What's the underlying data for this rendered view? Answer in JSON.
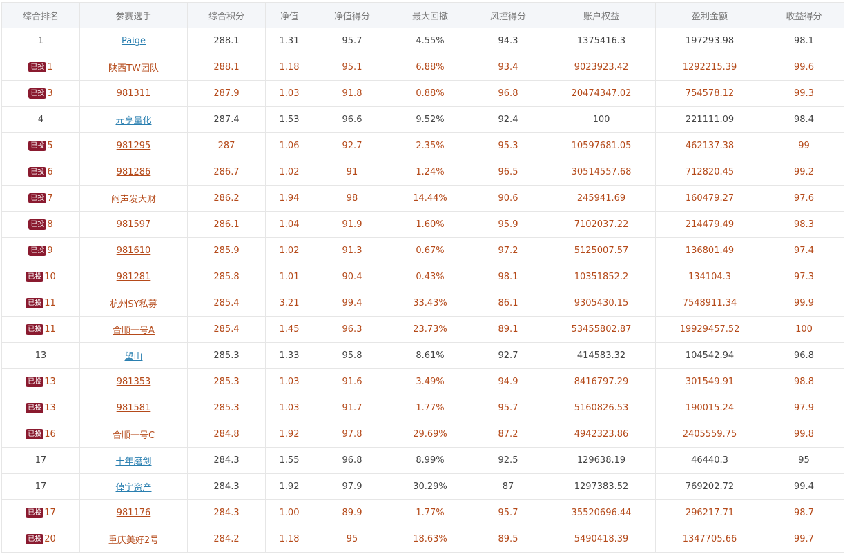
{
  "headers": [
    "综合排名",
    "参赛选手",
    "综合积分",
    "净值",
    "净值得分",
    "最大回撤",
    "风控得分",
    "账户权益",
    "盈利金额",
    "收益得分"
  ],
  "badge_label": "已投",
  "colors": {
    "invested_text": "#b54a1a",
    "link_blue": "#2a7fb0",
    "badge_bg": "#8a1a2f",
    "header_bg": "#f4f6f9"
  },
  "rows": [
    {
      "rank": "1",
      "invested": false,
      "name": "Paige",
      "score": "288.1",
      "nav": "1.31",
      "nav_score": "95.7",
      "max_dd": "4.55%",
      "risk_score": "94.3",
      "equity": "1375416.3",
      "profit": "197293.98",
      "return_score": "98.1"
    },
    {
      "rank": "1",
      "invested": true,
      "name": "陕西TW团队",
      "score": "288.1",
      "nav": "1.18",
      "nav_score": "95.1",
      "max_dd": "6.88%",
      "risk_score": "93.4",
      "equity": "9023923.42",
      "profit": "1292215.39",
      "return_score": "99.6"
    },
    {
      "rank": "3",
      "invested": true,
      "name": "981311",
      "score": "287.9",
      "nav": "1.03",
      "nav_score": "91.8",
      "max_dd": "0.88%",
      "risk_score": "96.8",
      "equity": "20474347.02",
      "profit": "754578.12",
      "return_score": "99.3"
    },
    {
      "rank": "4",
      "invested": false,
      "name": "元亨量化",
      "score": "287.4",
      "nav": "1.53",
      "nav_score": "96.6",
      "max_dd": "9.52%",
      "risk_score": "92.4",
      "equity": "100",
      "profit": "221111.09",
      "return_score": "98.4"
    },
    {
      "rank": "5",
      "invested": true,
      "name": "981295",
      "score": "287",
      "nav": "1.06",
      "nav_score": "92.7",
      "max_dd": "2.35%",
      "risk_score": "95.3",
      "equity": "10597681.05",
      "profit": "462137.38",
      "return_score": "99"
    },
    {
      "rank": "6",
      "invested": true,
      "name": "981286",
      "score": "286.7",
      "nav": "1.02",
      "nav_score": "91",
      "max_dd": "1.24%",
      "risk_score": "96.5",
      "equity": "30514557.68",
      "profit": "712820.45",
      "return_score": "99.2"
    },
    {
      "rank": "7",
      "invested": true,
      "name": "闷声发大财",
      "score": "286.2",
      "nav": "1.94",
      "nav_score": "98",
      "max_dd": "14.44%",
      "risk_score": "90.6",
      "equity": "245941.69",
      "profit": "160479.27",
      "return_score": "97.6"
    },
    {
      "rank": "8",
      "invested": true,
      "name": "981597",
      "score": "286.1",
      "nav": "1.04",
      "nav_score": "91.9",
      "max_dd": "1.60%",
      "risk_score": "95.9",
      "equity": "7102037.22",
      "profit": "214479.49",
      "return_score": "98.3"
    },
    {
      "rank": "9",
      "invested": true,
      "name": "981610",
      "score": "285.9",
      "nav": "1.02",
      "nav_score": "91.3",
      "max_dd": "0.67%",
      "risk_score": "97.2",
      "equity": "5125007.57",
      "profit": "136801.49",
      "return_score": "97.4"
    },
    {
      "rank": "10",
      "invested": true,
      "name": "981281",
      "score": "285.8",
      "nav": "1.01",
      "nav_score": "90.4",
      "max_dd": "0.43%",
      "risk_score": "98.1",
      "equity": "10351852.2",
      "profit": "134104.3",
      "return_score": "97.3"
    },
    {
      "rank": "11",
      "invested": true,
      "name": "杭州SY私募",
      "score": "285.4",
      "nav": "3.21",
      "nav_score": "99.4",
      "max_dd": "33.43%",
      "risk_score": "86.1",
      "equity": "9305430.15",
      "profit": "7548911.34",
      "return_score": "99.9"
    },
    {
      "rank": "11",
      "invested": true,
      "name": "合顺一号A",
      "score": "285.4",
      "nav": "1.45",
      "nav_score": "96.3",
      "max_dd": "23.73%",
      "risk_score": "89.1",
      "equity": "53455802.87",
      "profit": "19929457.52",
      "return_score": "100"
    },
    {
      "rank": "13",
      "invested": false,
      "name": "望山",
      "score": "285.3",
      "nav": "1.33",
      "nav_score": "95.8",
      "max_dd": "8.61%",
      "risk_score": "92.7",
      "equity": "414583.32",
      "profit": "104542.94",
      "return_score": "96.8"
    },
    {
      "rank": "13",
      "invested": true,
      "name": "981353",
      "score": "285.3",
      "nav": "1.03",
      "nav_score": "91.6",
      "max_dd": "3.49%",
      "risk_score": "94.9",
      "equity": "8416797.29",
      "profit": "301549.91",
      "return_score": "98.8"
    },
    {
      "rank": "13",
      "invested": true,
      "name": "981581",
      "score": "285.3",
      "nav": "1.03",
      "nav_score": "91.7",
      "max_dd": "1.77%",
      "risk_score": "95.7",
      "equity": "5160826.53",
      "profit": "190015.24",
      "return_score": "97.9"
    },
    {
      "rank": "16",
      "invested": true,
      "name": "合顺一号C",
      "score": "284.8",
      "nav": "1.92",
      "nav_score": "97.8",
      "max_dd": "29.69%",
      "risk_score": "87.2",
      "equity": "4942323.86",
      "profit": "2405559.75",
      "return_score": "99.8"
    },
    {
      "rank": "17",
      "invested": false,
      "name": "十年磨剑",
      "score": "284.3",
      "nav": "1.55",
      "nav_score": "96.8",
      "max_dd": "8.99%",
      "risk_score": "92.5",
      "equity": "129638.19",
      "profit": "46440.3",
      "return_score": "95"
    },
    {
      "rank": "17",
      "invested": false,
      "name": "倬宇资产",
      "score": "284.3",
      "nav": "1.92",
      "nav_score": "97.9",
      "max_dd": "30.29%",
      "risk_score": "87",
      "equity": "1297383.52",
      "profit": "769202.72",
      "return_score": "99.4"
    },
    {
      "rank": "17",
      "invested": true,
      "name": "981176",
      "score": "284.3",
      "nav": "1.00",
      "nav_score": "89.9",
      "max_dd": "1.77%",
      "risk_score": "95.7",
      "equity": "35520696.44",
      "profit": "296217.71",
      "return_score": "98.7"
    },
    {
      "rank": "20",
      "invested": true,
      "name": "重庆美好2号",
      "score": "284.2",
      "nav": "1.18",
      "nav_score": "95",
      "max_dd": "18.63%",
      "risk_score": "89.5",
      "equity": "5490418.39",
      "profit": "1347705.66",
      "return_score": "99.7"
    }
  ]
}
